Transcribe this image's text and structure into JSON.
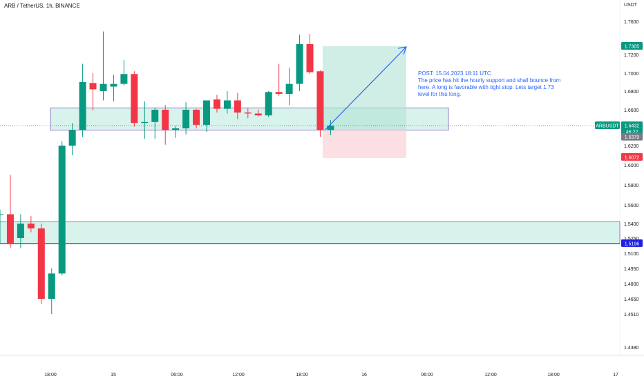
{
  "header": {
    "title": "ARB / TetherUS, 1h, BINANCE",
    "currency": "USDT"
  },
  "colors": {
    "up": "#089981",
    "down": "#f23645",
    "zone_fill": "#cbeee6",
    "zone_border": "#7e57c2",
    "support_line": "#1e1ee6",
    "target_fill": "#d8f1ea",
    "stop_fill": "#fcdcdf",
    "annotation": "#2962ff",
    "current_price_line": "#089981"
  },
  "chart_data": {
    "type": "candlestick",
    "y_ticks": [
      "1.7600",
      "1.7200",
      "1.7000",
      "1.6800",
      "1.6600",
      "1.6200",
      "1.6000",
      "1.5800",
      "1.5600",
      "1.5400",
      "1.5250",
      "1.5100",
      "1.4950",
      "1.4800",
      "1.4650",
      "1.4510",
      "1.4380"
    ],
    "x_ticks": [
      "18:00",
      "15",
      "06:00",
      "12:00",
      "18:00",
      "16",
      "06:00",
      "12:00",
      "18:00",
      "17"
    ],
    "candles": [
      {
        "o": 1.55,
        "h": 1.555,
        "l": 1.52,
        "c": 1.55
      },
      {
        "o": 1.55,
        "h": 1.59,
        "l": 1.515,
        "c": 1.52
      },
      {
        "o": 1.525,
        "h": 1.55,
        "l": 1.515,
        "c": 1.54
      },
      {
        "o": 1.54,
        "h": 1.548,
        "l": 1.531,
        "c": 1.535
      },
      {
        "o": 1.535,
        "h": 1.54,
        "l": 1.46,
        "c": 1.465
      },
      {
        "o": 1.465,
        "h": 1.495,
        "l": 1.451,
        "c": 1.49
      },
      {
        "o": 1.49,
        "h": 1.625,
        "l": 1.488,
        "c": 1.62
      },
      {
        "o": 1.62,
        "h": 1.646,
        "l": 1.61,
        "c": 1.638
      },
      {
        "o": 1.638,
        "h": 1.71,
        "l": 1.63,
        "c": 1.69
      },
      {
        "o": 1.689,
        "h": 1.7,
        "l": 1.659,
        "c": 1.682
      },
      {
        "o": 1.68,
        "h": 1.748,
        "l": 1.67,
        "c": 1.688
      },
      {
        "o": 1.685,
        "h": 1.698,
        "l": 1.669,
        "c": 1.688
      },
      {
        "o": 1.688,
        "h": 1.714,
        "l": 1.686,
        "c": 1.699
      },
      {
        "o": 1.699,
        "h": 1.702,
        "l": 1.642,
        "c": 1.646
      },
      {
        "o": 1.646,
        "h": 1.669,
        "l": 1.628,
        "c": 1.647
      },
      {
        "o": 1.647,
        "h": 1.662,
        "l": 1.628,
        "c": 1.66
      },
      {
        "o": 1.66,
        "h": 1.665,
        "l": 1.621,
        "c": 1.638
      },
      {
        "o": 1.638,
        "h": 1.643,
        "l": 1.629,
        "c": 1.64
      },
      {
        "o": 1.64,
        "h": 1.668,
        "l": 1.633,
        "c": 1.66
      },
      {
        "o": 1.66,
        "h": 1.661,
        "l": 1.64,
        "c": 1.644
      },
      {
        "o": 1.644,
        "h": 1.67,
        "l": 1.636,
        "c": 1.67
      },
      {
        "o": 1.671,
        "h": 1.676,
        "l": 1.657,
        "c": 1.661
      },
      {
        "o": 1.661,
        "h": 1.68,
        "l": 1.656,
        "c": 1.67
      },
      {
        "o": 1.67,
        "h": 1.678,
        "l": 1.65,
        "c": 1.657
      },
      {
        "o": 1.657,
        "h": 1.662,
        "l": 1.651,
        "c": 1.656
      },
      {
        "o": 1.656,
        "h": 1.66,
        "l": 1.653,
        "c": 1.654
      },
      {
        "o": 1.654,
        "h": 1.68,
        "l": 1.652,
        "c": 1.679
      },
      {
        "o": 1.679,
        "h": 1.71,
        "l": 1.675,
        "c": 1.677
      },
      {
        "o": 1.677,
        "h": 1.706,
        "l": 1.665,
        "c": 1.688
      },
      {
        "o": 1.688,
        "h": 1.744,
        "l": 1.68,
        "c": 1.733
      },
      {
        "o": 1.733,
        "h": 1.745,
        "l": 1.699,
        "c": 1.701
      },
      {
        "o": 1.702,
        "h": 1.703,
        "l": 1.63,
        "c": 1.638
      },
      {
        "o": 1.638,
        "h": 1.649,
        "l": 1.632,
        "c": 1.6432
      }
    ],
    "upper_zone": [
      1.638,
      1.662
    ],
    "lower_zone": [
      1.5196,
      1.542
    ],
    "position": {
      "entry": 1.6379,
      "target": 1.7305,
      "stop": 1.6072
    }
  },
  "annotation": {
    "lines": [
      "POST: 15.04.2023 18:11 UTC",
      "The price has hit the hourly support and shall bounce from",
      "here. A long is favorable with tight stop. Lets target 1.73",
      "level for this long."
    ]
  },
  "price_labels": {
    "target": "1.7305",
    "ticker": "ARBUSDT",
    "current": "1.6432",
    "countdown": "46:22",
    "entry": "1.6379",
    "stop": "1.6072",
    "support": "1.5196"
  }
}
